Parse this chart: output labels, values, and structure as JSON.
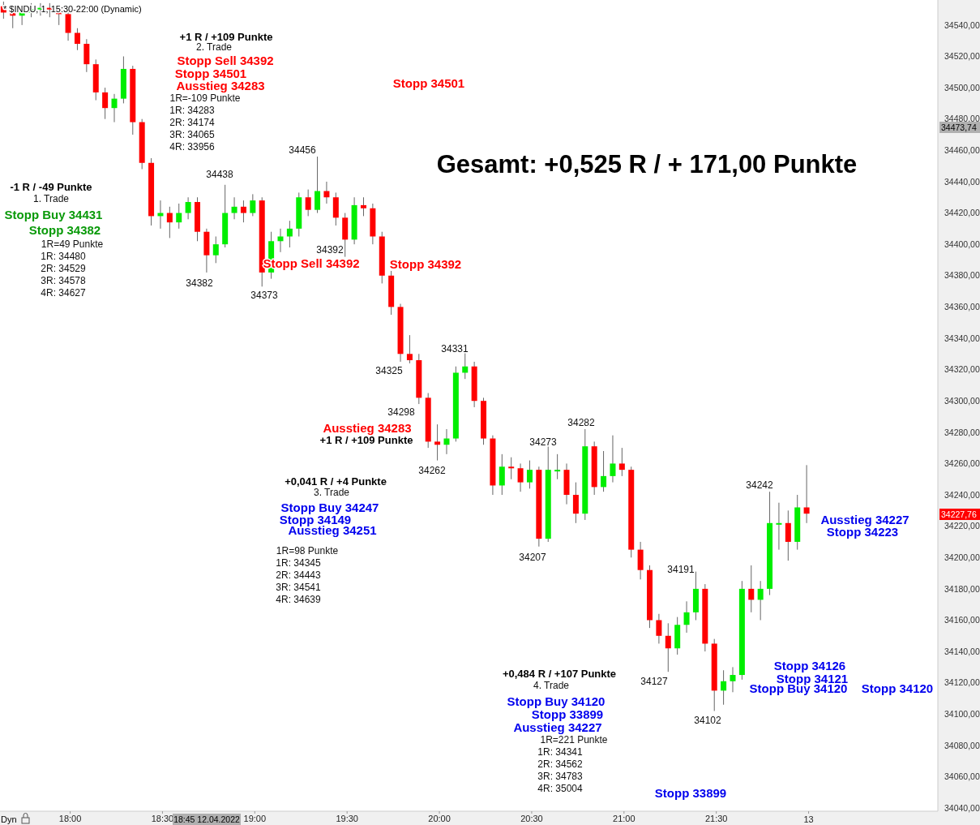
{
  "chart_data": {
    "type": "candlestick",
    "title": "* $INDU, 1, 15:30-22:00 (Dynamic)",
    "x": [
      17.64,
      17.69,
      17.74,
      17.79,
      17.84,
      17.89,
      17.94,
      17.99,
      18.04,
      18.09,
      18.14,
      18.19,
      18.24,
      18.29,
      18.34,
      18.39,
      18.44,
      18.49,
      18.54,
      18.59,
      18.64,
      18.69,
      18.74,
      18.79,
      18.84,
      18.89,
      18.94,
      18.99,
      19.04,
      19.09,
      19.14,
      19.19,
      19.24,
      19.29,
      19.34,
      19.39,
      19.44,
      19.49,
      19.54,
      19.59,
      19.64,
      19.69,
      19.74,
      19.79,
      19.84,
      19.89,
      19.94,
      19.99,
      20.04,
      20.09,
      20.14,
      20.19,
      20.24,
      20.29,
      20.34,
      20.39,
      20.44,
      20.49,
      20.54,
      20.59,
      20.64,
      20.69,
      20.74,
      20.79,
      20.84,
      20.89,
      20.94,
      20.99,
      21.04,
      21.09,
      21.14,
      21.19,
      21.24,
      21.29,
      21.34,
      21.39,
      21.44,
      21.49,
      21.54,
      21.59,
      21.64,
      21.69,
      21.74,
      21.79,
      21.84,
      21.89,
      21.94,
      21.99
    ],
    "ohlc": [
      [
        34552,
        34555,
        34544,
        34548
      ],
      [
        34548,
        34551,
        34538,
        34546
      ],
      [
        34546,
        34552,
        34540,
        34548
      ],
      [
        34548,
        34554,
        34545,
        34550
      ],
      [
        34550,
        34554,
        34546,
        34551
      ],
      [
        34551,
        34554,
        34545,
        34550
      ],
      [
        34550,
        34552,
        34540,
        34547
      ],
      [
        34547,
        34549,
        34530,
        34535
      ],
      [
        34535,
        34538,
        34524,
        34528
      ],
      [
        34528,
        34531,
        34510,
        34515
      ],
      [
        34515,
        34518,
        34492,
        34497
      ],
      [
        34497,
        34500,
        34480,
        34487
      ],
      [
        34487,
        34496,
        34478,
        34493
      ],
      [
        34493,
        34520,
        34490,
        34512
      ],
      [
        34512,
        34514,
        34470,
        34478
      ],
      [
        34478,
        34480,
        34448,
        34452
      ],
      [
        34452,
        34455,
        34412,
        34418
      ],
      [
        34418,
        34428,
        34410,
        34420
      ],
      [
        34420,
        34424,
        34404,
        34414
      ],
      [
        34414,
        34426,
        34410,
        34420
      ],
      [
        34420,
        34430,
        34416,
        34427
      ],
      [
        34427,
        34430,
        34402,
        34408
      ],
      [
        34408,
        34410,
        34382,
        34393
      ],
      [
        34393,
        34405,
        34388,
        34400
      ],
      [
        34400,
        34438,
        34398,
        34420
      ],
      [
        34420,
        34430,
        34416,
        34424
      ],
      [
        34424,
        34428,
        34414,
        34420
      ],
      [
        34420,
        34432,
        34418,
        34428
      ],
      [
        34428,
        34430,
        34373,
        34382
      ],
      [
        34382,
        34408,
        34378,
        34402
      ],
      [
        34402,
        34410,
        34395,
        34405
      ],
      [
        34405,
        34415,
        34398,
        34410
      ],
      [
        34410,
        34433,
        34405,
        34430
      ],
      [
        34430,
        34435,
        34418,
        34422
      ],
      [
        34422,
        34456,
        34420,
        34434
      ],
      [
        34434,
        34440,
        34426,
        34430
      ],
      [
        34430,
        34433,
        34412,
        34417
      ],
      [
        34417,
        34420,
        34392,
        34403
      ],
      [
        34403,
        34430,
        34400,
        34425
      ],
      [
        34425,
        34430,
        34418,
        34423
      ],
      [
        34423,
        34426,
        34400,
        34405
      ],
      [
        34405,
        34408,
        34375,
        34380
      ],
      [
        34380,
        34383,
        34355,
        34360
      ],
      [
        34360,
        34362,
        34325,
        34330
      ],
      [
        34330,
        34342,
        34324,
        34326
      ],
      [
        34326,
        34330,
        34298,
        34302
      ],
      [
        34302,
        34305,
        34270,
        34274
      ],
      [
        34274,
        34285,
        34262,
        34272
      ],
      [
        34272,
        34282,
        34266,
        34276
      ],
      [
        34276,
        34322,
        34274,
        34318
      ],
      [
        34318,
        34331,
        34314,
        34322
      ],
      [
        34322,
        34325,
        34296,
        34300
      ],
      [
        34300,
        34302,
        34272,
        34276
      ],
      [
        34276,
        34278,
        34240,
        34246
      ],
      [
        34246,
        34266,
        34240,
        34258
      ],
      [
        34258,
        34264,
        34250,
        34257
      ],
      [
        34257,
        34260,
        34242,
        34248
      ],
      [
        34248,
        34262,
        34244,
        34256
      ],
      [
        34256,
        34258,
        34207,
        34212
      ],
      [
        34212,
        34273,
        34210,
        34256
      ],
      [
        34256,
        34266,
        34250,
        34256
      ],
      [
        34256,
        34260,
        34234,
        34240
      ],
      [
        34240,
        34248,
        34222,
        34228
      ],
      [
        34228,
        34282,
        34224,
        34271
      ],
      [
        34271,
        34274,
        34240,
        34245
      ],
      [
        34245,
        34268,
        34242,
        34252
      ],
      [
        34252,
        34278,
        34248,
        34260
      ],
      [
        34260,
        34270,
        34252,
        34256
      ],
      [
        34256,
        34258,
        34200,
        34205
      ],
      [
        34205,
        34210,
        34186,
        34192
      ],
      [
        34192,
        34195,
        34155,
        34160
      ],
      [
        34160,
        34164,
        34145,
        34150
      ],
      [
        34150,
        34158,
        34127,
        34142
      ],
      [
        34142,
        34162,
        34138,
        34157
      ],
      [
        34157,
        34172,
        34152,
        34165
      ],
      [
        34165,
        34191,
        34160,
        34180
      ],
      [
        34180,
        34183,
        34140,
        34145
      ],
      [
        34145,
        34148,
        34102,
        34115
      ],
      [
        34115,
        34128,
        34106,
        34121
      ],
      [
        34121,
        34130,
        34114,
        34125
      ],
      [
        34125,
        34185,
        34122,
        34180
      ],
      [
        34180,
        34195,
        34165,
        34173
      ],
      [
        34173,
        34185,
        34160,
        34180
      ],
      [
        34180,
        34242,
        34176,
        34222
      ],
      [
        34222,
        34235,
        34205,
        34222
      ],
      [
        34222,
        34230,
        34198,
        34210
      ],
      [
        34210,
        34240,
        34205,
        34232
      ],
      [
        34232,
        34259,
        34222,
        34228
      ]
    ],
    "xlim": [
      17.62,
      22.7
    ],
    "xticks": [
      {
        "value": 18,
        "label": "18:00"
      },
      {
        "value": 18.5,
        "label": "18:30"
      },
      {
        "value": 19,
        "label": "19:00"
      },
      {
        "value": 19.5,
        "label": "19:30"
      },
      {
        "value": 20,
        "label": "20:00"
      },
      {
        "value": 20.5,
        "label": "20:30"
      },
      {
        "value": 21,
        "label": "21:00"
      },
      {
        "value": 21.5,
        "label": "21:30"
      },
      {
        "value": 22,
        "label": null
      }
    ],
    "ylim": [
      34038,
      34556
    ],
    "yticks": [
      {
        "value": 34040,
        "label": "34040,00"
      },
      {
        "value": 34060,
        "label": "34060,00"
      },
      {
        "value": 34080,
        "label": "34080,00"
      },
      {
        "value": 34100,
        "label": "34100,00"
      },
      {
        "value": 34120,
        "label": "34120,00"
      },
      {
        "value": 34140,
        "label": "34140,00"
      },
      {
        "value": 34160,
        "label": "34160,00"
      },
      {
        "value": 34180,
        "label": "34180,00"
      },
      {
        "value": 34200,
        "label": "34200,00"
      },
      {
        "value": 34220,
        "label": "34220,00"
      },
      {
        "value": 34240,
        "label": "34240,00"
      },
      {
        "value": 34260,
        "label": "34260,00"
      },
      {
        "value": 34280,
        "label": "34280,00"
      },
      {
        "value": 34300,
        "label": "34300,00"
      },
      {
        "value": 34320,
        "label": "34320,00"
      },
      {
        "value": 34340,
        "label": "34340,00"
      },
      {
        "value": 34360,
        "label": "34360,00"
      },
      {
        "value": 34380,
        "label": "34380,00"
      },
      {
        "value": 34400,
        "label": "34400,00"
      },
      {
        "value": 34420,
        "label": "34420,00"
      },
      {
        "value": 34440,
        "label": "34440,00"
      },
      {
        "value": 34460,
        "label": "34460,00"
      },
      {
        "value": 34480,
        "label": "34480,00"
      },
      {
        "value": 34500,
        "label": "34500,00"
      },
      {
        "value": 34520,
        "label": "34520,00"
      },
      {
        "value": 34540,
        "label": "34540,00"
      }
    ],
    "annotations": [
      "+1 R / +109 Punkte",
      "2. Trade",
      "Stopp Sell 34392",
      "Stopp 34501",
      "Ausstieg 34283",
      "1R=-109 Punkte",
      "1R: 34283",
      "2R: 34174",
      "3R: 34065",
      "4R: 33956",
      "Stopp 34501",
      "Gesamt: +0,525 R / + 171,00 Punkte",
      "-1 R / -49 Punkte",
      "1. Trade",
      "Stopp Buy 34431",
      "Stopp 34382",
      "1R=49 Punkte",
      "1R: 34480",
      "2R: 34529",
      "3R: 34578",
      "4R: 34627",
      "34456",
      "34438",
      "34392",
      "34382",
      "34373",
      "34331",
      "34325",
      "34298",
      "34262",
      "34273",
      "34282",
      "34207",
      "34191",
      "34127",
      "34102",
      "34242",
      "Stopp Sell 34392",
      "Stopp 34392",
      "Ausstieg 34283",
      "+1 R / +109 Punkte",
      "+0,041 R / +4 Punkte",
      "3. Trade",
      "Stopp Buy 34247",
      "Stopp 34149",
      "Ausstieg 34251",
      "1R=98 Punkte",
      "1R: 34345",
      "2R: 34443",
      "3R: 34541",
      "4R: 34639",
      "+0,484 R / +107 Punkte",
      "4. Trade",
      "Stopp Buy 34120",
      "Stopp 33899",
      "Ausstieg 34227",
      "1R=221 Punkte",
      "1R: 34341",
      "2R: 34562",
      "3R: 34783",
      "4R: 35004",
      "Stopp 33899",
      "Stopp 34126",
      "Stopp 34121",
      "Stopp Buy 34120",
      "Stopp 34120",
      "Ausstieg 34227",
      "Stopp 34223",
      "18:45 12.04.2022",
      "34473,74",
      "34227,76",
      "Dyn",
      "13"
    ]
  }
}
